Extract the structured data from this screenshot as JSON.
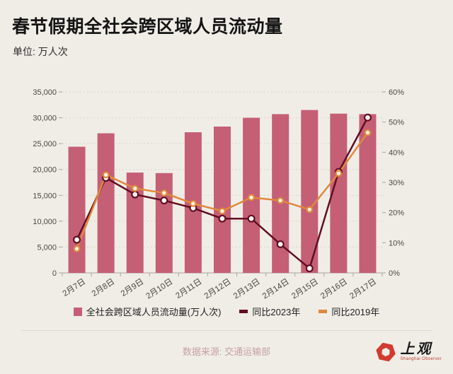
{
  "title": "春节假期全社会跨区域人员流动量",
  "subtitle": "单位: 万人次",
  "legend": [
    {
      "label": "全社会跨区域人员流动量(万人次)",
      "type": "square",
      "color": "#c55f76"
    },
    {
      "label": "同比2023年",
      "type": "dash",
      "color": "#620e22"
    },
    {
      "label": "同比2019年",
      "type": "dash",
      "color": "#e0883c"
    }
  ],
  "footer": {
    "source": "数据来源: 交通运输部",
    "logo_text": "上观",
    "logo_subtext": "Shanghai Observer"
  },
  "colors": {
    "background": "#f0ede7",
    "bar": "#c55f76",
    "line_2023": "#620e22",
    "line_2019": "#e0883c",
    "marker_fill_2023": "#ffffff",
    "marker_fill_2019": "#fdf3dd",
    "grid": "#d9d3c9",
    "axis": "#aaa49b",
    "axis_text": "#4b4741",
    "footer_text": "#c6a0a3",
    "logo_red": "#d23b2e"
  },
  "chart_data": {
    "type": "bar+line",
    "title": "春节假期全社会跨区域人员流动量",
    "unit": "万人次",
    "categories": [
      "2月7日",
      "2月8日",
      "2月9日",
      "2月10日",
      "2月11日",
      "2月12日",
      "2月13日",
      "2月14日",
      "2月15日",
      "2月16日",
      "2月17日"
    ],
    "bar_series": {
      "name": "全社会跨区域人员流动量(万人次)",
      "axis": "left",
      "values": [
        24400,
        27000,
        19400,
        19300,
        27200,
        28300,
        30000,
        30700,
        31500,
        30800,
        30700
      ]
    },
    "line_series": [
      {
        "name": "同比2023年",
        "axis": "right",
        "color_key": "line_2023",
        "values": [
          11,
          31.5,
          26,
          24,
          21.5,
          18,
          18,
          9.5,
          1.5,
          33.5,
          51.5
        ]
      },
      {
        "name": "同比2019年",
        "axis": "right",
        "color_key": "line_2019",
        "values": [
          8,
          32.5,
          28,
          26.5,
          23,
          20.5,
          25,
          24,
          21,
          33,
          46.5
        ]
      }
    ],
    "y_left": {
      "min": 0,
      "max": 35000,
      "step": 5000,
      "ticks": [
        "0",
        "5,000",
        "10,000",
        "15,000",
        "20,000",
        "25,000",
        "30,000",
        "35,000"
      ]
    },
    "y_right": {
      "min": 0,
      "max": 60,
      "step": 10,
      "ticks": [
        "0%",
        "10%",
        "20%",
        "30%",
        "40%",
        "50%",
        "60%"
      ]
    },
    "grid": "dashed horizontal, left-axis steps",
    "legend_position": "bottom"
  }
}
